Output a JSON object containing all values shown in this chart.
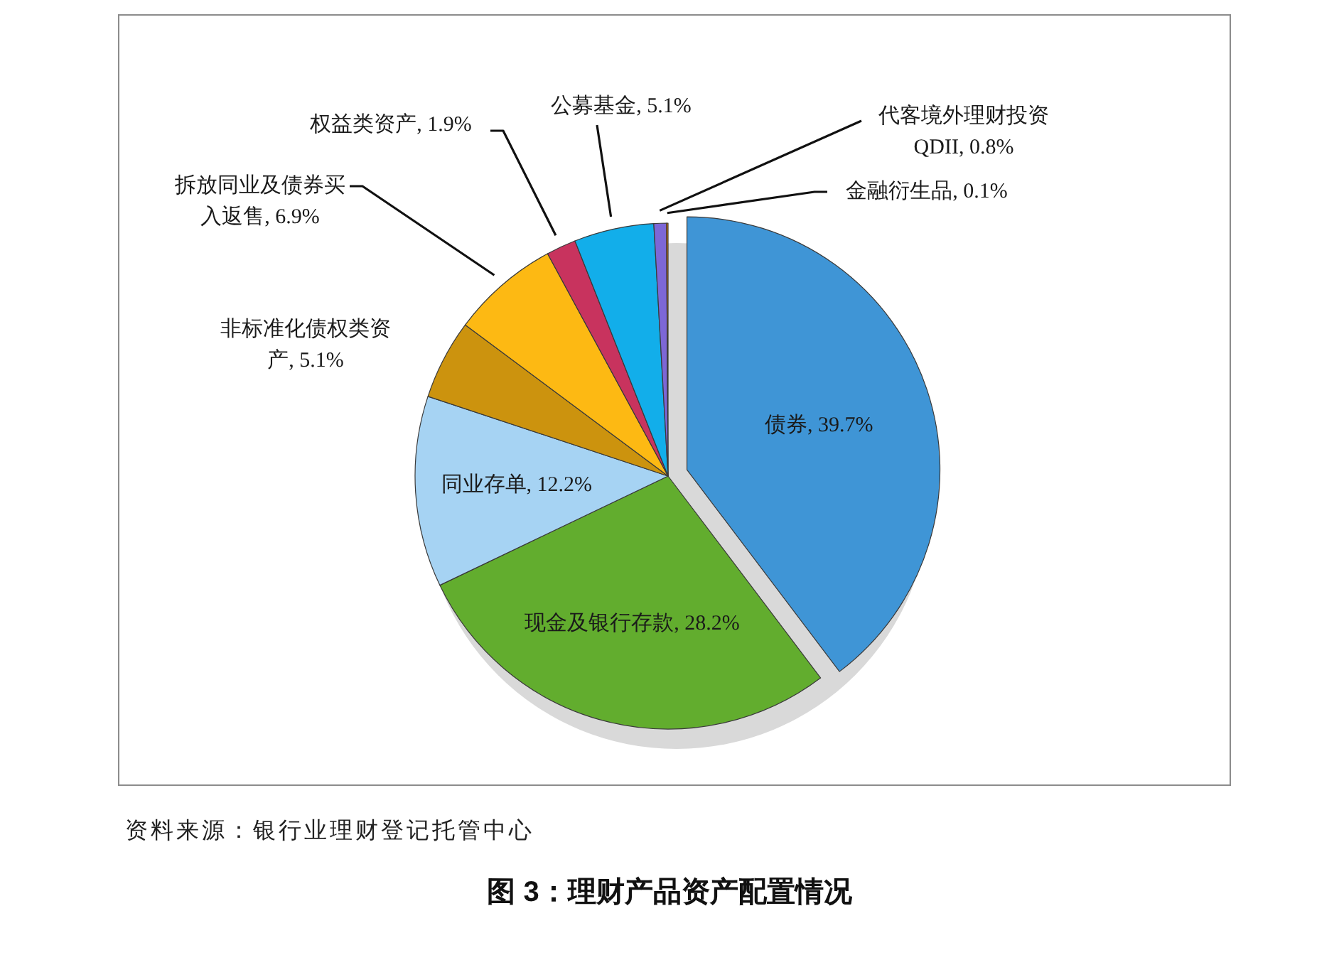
{
  "chart_data": {
    "type": "pie",
    "title": "图 3：理财产品资产配置情况",
    "categories": [
      "债券",
      "现金及银行存款",
      "同业存单",
      "非标准化债权类资产",
      "拆放同业及债券买入返售",
      "权益类资产",
      "公募基金",
      "代客境外理财投资QDII",
      "金融衍生品"
    ],
    "values": [
      39.7,
      28.2,
      12.2,
      5.1,
      6.9,
      1.9,
      5.1,
      0.8,
      0.1
    ],
    "colors": [
      "#3f95d6",
      "#62ad2e",
      "#a6d3f3",
      "#cc930e",
      "#fdb913",
      "#c8335e",
      "#12aeea",
      "#7d67d6",
      "#f07f09"
    ],
    "value_labels": [
      "39.7%",
      "28.2%",
      "12.2%",
      "5.1%",
      "6.9%",
      "1.9%",
      "5.1%",
      "0.8%",
      "0.1%"
    ],
    "annotations": [
      "资料来源：银行业理财登记托管中心"
    ]
  }
}
